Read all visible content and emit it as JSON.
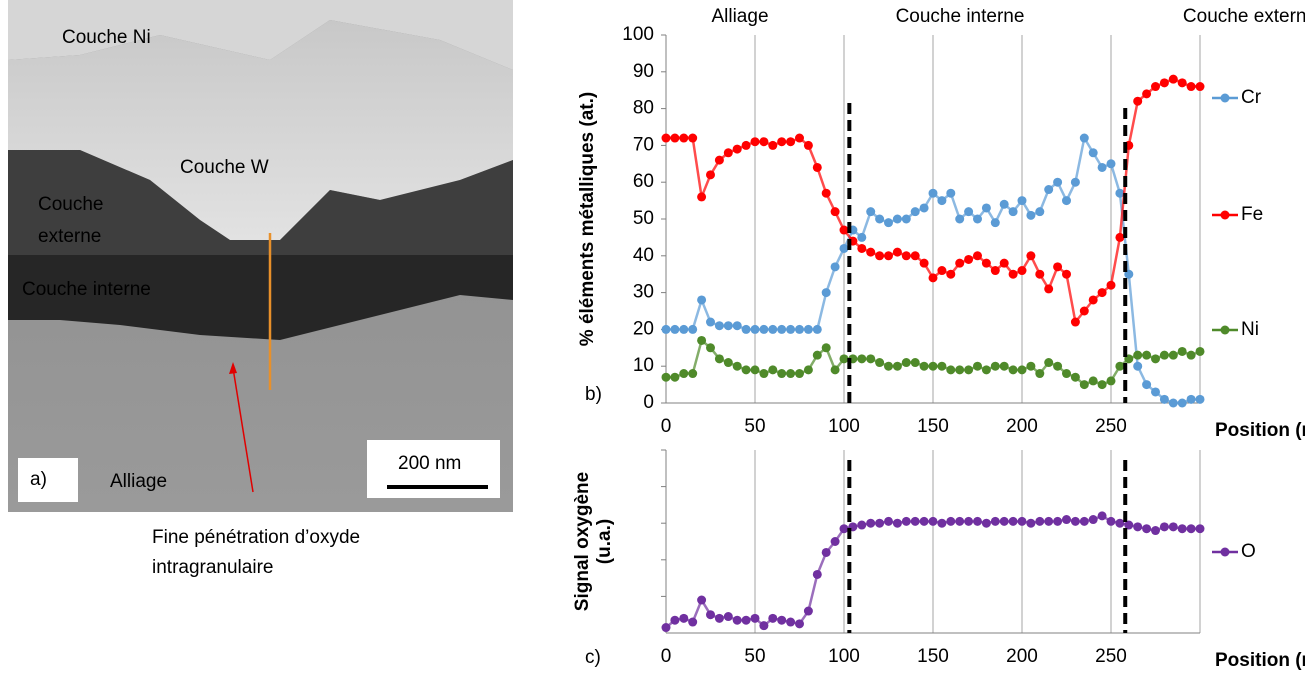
{
  "image_panel": {
    "labels": {
      "nickel": "Couche Ni",
      "tungsten": "Couche W",
      "outer": [
        "Couche",
        "externe"
      ],
      "inner": "Couche interne",
      "alloy": "Alliage",
      "panel": "a)",
      "scale": "200 nm"
    },
    "annotation": [
      "Fine pénétration d’oxyde",
      "intragranulaire"
    ]
  },
  "chart_data": [
    {
      "type": "line",
      "panel_label": "b)",
      "zones": [
        "Alliage",
        "Couche interne",
        "Couche externe"
      ],
      "ylabel": "% éléments métalliques (at.)",
      "xlabel": "Position (nm)",
      "xlim": [
        0,
        300
      ],
      "ylim": [
        0,
        100
      ],
      "xticks": [
        0,
        50,
        100,
        150,
        200,
        250
      ],
      "yticks": [
        0,
        10,
        20,
        30,
        40,
        50,
        60,
        70,
        80,
        90,
        100
      ],
      "grid": true,
      "legend": "right",
      "boundaries": [
        103,
        258
      ],
      "x": [
        0,
        5,
        10,
        15,
        20,
        25,
        30,
        35,
        40,
        45,
        50,
        55,
        60,
        65,
        70,
        75,
        80,
        85,
        90,
        95,
        100,
        105,
        110,
        115,
        120,
        125,
        130,
        135,
        140,
        145,
        150,
        155,
        160,
        165,
        170,
        175,
        180,
        185,
        190,
        195,
        200,
        205,
        210,
        215,
        220,
        225,
        230,
        235,
        240,
        245,
        250,
        255,
        260,
        265,
        270,
        275,
        280,
        285,
        290,
        295,
        300
      ],
      "series": [
        {
          "name": "Cr",
          "color": "#5b9bd5",
          "values": [
            20,
            20,
            20,
            20,
            28,
            22,
            21,
            21,
            21,
            20,
            20,
            20,
            20,
            20,
            20,
            20,
            20,
            20,
            30,
            37,
            42,
            47,
            45,
            52,
            50,
            49,
            50,
            50,
            52,
            53,
            57,
            55,
            57,
            50,
            52,
            50,
            53,
            49,
            54,
            52,
            55,
            51,
            52,
            58,
            60,
            55,
            60,
            72,
            68,
            64,
            65,
            57,
            35,
            10,
            5,
            3,
            1,
            0,
            0,
            1,
            1
          ]
        },
        {
          "name": "Fe",
          "color": "#ff0000",
          "values": [
            72,
            72,
            72,
            72,
            56,
            62,
            66,
            68,
            69,
            70,
            71,
            71,
            70,
            71,
            71,
            72,
            70,
            64,
            57,
            52,
            47,
            44,
            42,
            41,
            40,
            40,
            41,
            40,
            40,
            38,
            34,
            36,
            35,
            38,
            39,
            40,
            38,
            36,
            38,
            35,
            36,
            40,
            35,
            31,
            37,
            35,
            22,
            25,
            28,
            30,
            32,
            45,
            70,
            82,
            84,
            86,
            87,
            88,
            87,
            86,
            86
          ]
        },
        {
          "name": "Ni",
          "color": "#4f8a2a",
          "values": [
            7,
            7,
            8,
            8,
            17,
            15,
            12,
            11,
            10,
            9,
            9,
            8,
            9,
            8,
            8,
            8,
            9,
            13,
            15,
            9,
            12,
            12,
            12,
            12,
            11,
            10,
            10,
            11,
            11,
            10,
            10,
            10,
            9,
            9,
            9,
            10,
            9,
            10,
            10,
            9,
            9,
            10,
            8,
            11,
            10,
            8,
            7,
            5,
            6,
            5,
            6,
            10,
            12,
            13,
            13,
            12,
            13,
            13,
            14,
            13,
            14
          ]
        }
      ]
    },
    {
      "type": "line",
      "panel_label": "c)",
      "ylabel": [
        "Signal oxygène",
        "(u.a.)"
      ],
      "xlabel": "Position (nm)",
      "xlim": [
        0,
        300
      ],
      "ylim": [
        0,
        100
      ],
      "xticks": [
        0,
        50,
        100,
        150,
        200,
        250
      ],
      "grid": true,
      "legend": "right",
      "boundaries": [
        103,
        258
      ],
      "x": [
        0,
        5,
        10,
        15,
        20,
        25,
        30,
        35,
        40,
        45,
        50,
        55,
        60,
        65,
        70,
        75,
        80,
        85,
        90,
        95,
        100,
        105,
        110,
        115,
        120,
        125,
        130,
        135,
        140,
        145,
        150,
        155,
        160,
        165,
        170,
        175,
        180,
        185,
        190,
        195,
        200,
        205,
        210,
        215,
        220,
        225,
        230,
        235,
        240,
        245,
        250,
        255,
        260,
        265,
        270,
        275,
        280,
        285,
        290,
        295,
        300
      ],
      "series": [
        {
          "name": "O",
          "color": "#7030a0",
          "values": [
            3,
            7,
            8,
            6,
            18,
            10,
            8,
            9,
            7,
            7,
            8,
            4,
            8,
            7,
            6,
            5,
            12,
            32,
            44,
            50,
            57,
            58,
            59,
            60,
            60,
            61,
            60,
            61,
            61,
            61,
            61,
            60,
            61,
            61,
            61,
            61,
            60,
            61,
            61,
            61,
            61,
            60,
            61,
            61,
            61,
            62,
            61,
            61,
            62,
            64,
            61,
            60,
            59,
            58,
            57,
            56,
            58,
            58,
            57,
            57,
            57
          ]
        }
      ]
    }
  ]
}
